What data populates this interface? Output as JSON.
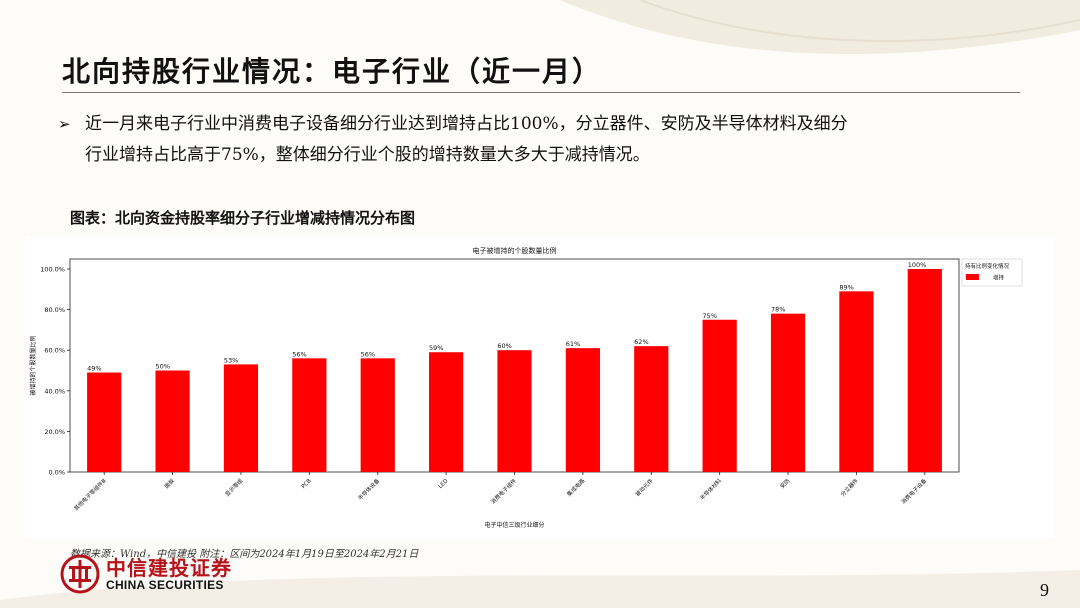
{
  "page": {
    "title": "北向持股行业情况：电子行业（近一月）",
    "bullet_line1": "近一月来电子行业中消费电子设备细分行业达到增持占比100%，分立器件、安防及半导体材料及细分",
    "bullet_line2": "行业增持占比高于75%，整体细分行业个股的增持数量大多大于减持情况。",
    "caption": "图表：北向资金持股率细分子行业增减持情况分布图",
    "source": "数据来源：Wind，中信建投 附注：区间为2024年1月19日至2024年2月21日",
    "page_number": "9"
  },
  "logo": {
    "cn": "中信建投证券",
    "en": "CHINA SECURITIES"
  },
  "colors": {
    "bar": "#ff0000",
    "logo_red": "#b5121b"
  },
  "chart_data": {
    "type": "bar",
    "title": "电子被增持的个股数量比例",
    "xlabel": "电子中信三级行业细分",
    "ylabel": "被增持的个股数量比例",
    "ylim": [
      0,
      1.0
    ],
    "yticks": [
      "0.0%",
      "20.0%",
      "40.0%",
      "60.0%",
      "80.0%",
      "100.0%"
    ],
    "grid": false,
    "legend_title": "持有比例变化情况",
    "legend_placement": "outside-right-top",
    "categories": [
      "其他电子零组件Ⅲ",
      "面板",
      "显示零组",
      "PCB",
      "半导体设备",
      "LED",
      "消费电子组件",
      "集成电路",
      "被动元件",
      "半导体材料",
      "安防",
      "分立器件",
      "消费电子设备"
    ],
    "series": [
      {
        "name": "增持",
        "color": "#ff0000",
        "values": [
          0.49,
          0.5,
          0.53,
          0.56,
          0.56,
          0.59,
          0.6,
          0.61,
          0.62,
          0.75,
          0.78,
          0.89,
          1.0
        ],
        "labels": [
          "49%",
          "50%",
          "53%",
          "56%",
          "56%",
          "59%",
          "60%",
          "61%",
          "62%",
          "75%",
          "78%",
          "89%",
          "100%"
        ]
      }
    ]
  }
}
